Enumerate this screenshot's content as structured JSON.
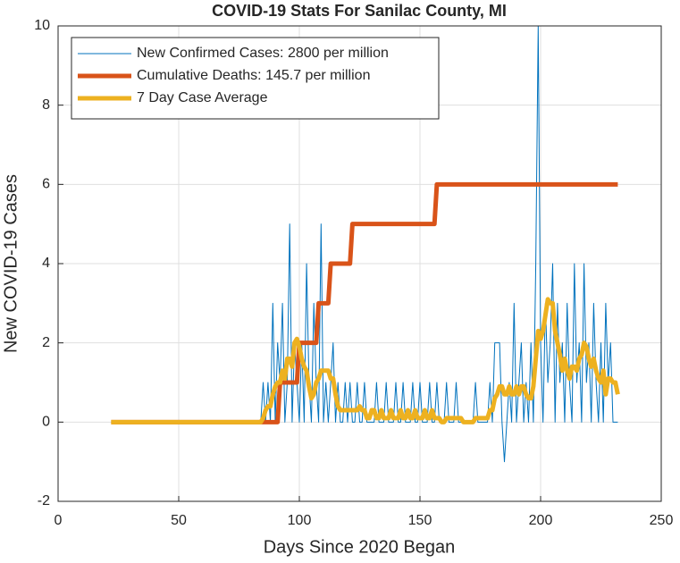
{
  "chart_data": {
    "type": "line",
    "title": "COVID-19 Stats For Sanilac County, MI",
    "x_label": "Days Since 2020 Began",
    "y_label": "New COVID-19 Cases",
    "xlim": [
      0,
      250
    ],
    "xticks": [
      0,
      50,
      100,
      150,
      200,
      250
    ],
    "ylim": [
      -2,
      10
    ],
    "yticks": [
      -2,
      0,
      2,
      4,
      6,
      8,
      10
    ],
    "grid": true,
    "legend": "upper left",
    "x": [
      22,
      23,
      24,
      25,
      26,
      27,
      28,
      29,
      30,
      31,
      32,
      33,
      34,
      35,
      36,
      37,
      38,
      39,
      40,
      41,
      42,
      43,
      44,
      45,
      46,
      47,
      48,
      49,
      50,
      51,
      52,
      53,
      54,
      55,
      56,
      57,
      58,
      59,
      60,
      61,
      62,
      63,
      64,
      65,
      66,
      67,
      68,
      69,
      70,
      71,
      72,
      73,
      74,
      75,
      76,
      77,
      78,
      79,
      80,
      81,
      82,
      83,
      84,
      85,
      86,
      87,
      88,
      89,
      90,
      91,
      92,
      93,
      94,
      95,
      96,
      97,
      98,
      99,
      100,
      101,
      102,
      103,
      104,
      105,
      106,
      107,
      108,
      109,
      110,
      111,
      112,
      113,
      114,
      115,
      116,
      117,
      118,
      119,
      120,
      121,
      122,
      123,
      124,
      125,
      126,
      127,
      128,
      129,
      130,
      131,
      132,
      133,
      134,
      135,
      136,
      137,
      138,
      139,
      140,
      141,
      142,
      143,
      144,
      145,
      146,
      147,
      148,
      149,
      150,
      151,
      152,
      153,
      154,
      155,
      156,
      157,
      158,
      159,
      160,
      161,
      162,
      163,
      164,
      165,
      166,
      167,
      168,
      169,
      170,
      171,
      172,
      173,
      174,
      175,
      176,
      177,
      178,
      179,
      180,
      181,
      182,
      183,
      184,
      185,
      186,
      187,
      188,
      189,
      190,
      191,
      192,
      193,
      194,
      195,
      196,
      197,
      198,
      199,
      200,
      201,
      202,
      203,
      204,
      205,
      206,
      207,
      208,
      209,
      210,
      211,
      212,
      213,
      214,
      215,
      216,
      217,
      218,
      219,
      220,
      221,
      222,
      223,
      224,
      225,
      226,
      227,
      228,
      229,
      230,
      231,
      232
    ],
    "series": [
      {
        "name": "New Confirmed Cases: 2800 per million",
        "color": "#0072bd",
        "width": 1,
        "values": [
          0,
          0,
          0,
          0,
          0,
          0,
          0,
          0,
          0,
          0,
          0,
          0,
          0,
          0,
          0,
          0,
          0,
          0,
          0,
          0,
          0,
          0,
          0,
          0,
          0,
          0,
          0,
          0,
          0,
          0,
          0,
          0,
          0,
          0,
          0,
          0,
          0,
          0,
          0,
          0,
          0,
          0,
          0,
          0,
          0,
          0,
          0,
          0,
          0,
          0,
          0,
          0,
          0,
          0,
          0,
          0,
          0,
          0,
          0,
          0,
          0,
          0,
          0,
          1,
          0,
          1,
          0,
          3,
          0,
          2,
          1,
          3,
          0,
          1,
          5,
          0,
          2,
          1,
          0,
          2,
          0,
          4,
          1,
          0,
          3,
          1,
          0,
          5,
          0,
          1,
          0,
          1,
          2,
          0,
          1,
          0,
          0,
          1,
          0,
          1,
          0,
          0,
          1,
          0,
          0,
          1,
          0,
          0,
          0,
          0,
          1,
          0,
          0,
          0,
          1,
          0,
          0,
          0,
          1,
          0,
          0,
          1,
          0,
          0,
          0,
          1,
          0,
          0,
          1,
          0,
          0,
          0,
          1,
          0,
          0,
          1,
          0,
          0,
          0,
          1,
          0,
          0,
          0,
          1,
          0,
          0,
          0,
          0,
          0,
          0,
          0,
          1,
          0,
          0,
          0,
          0,
          0,
          1,
          0,
          2,
          2,
          2,
          0,
          -1,
          0,
          1,
          0,
          3,
          0,
          1,
          2,
          0,
          1,
          0,
          2,
          0,
          4,
          10,
          2,
          0,
          3,
          1,
          2,
          4,
          0,
          3,
          1,
          2,
          0,
          3,
          1,
          0,
          4,
          1,
          2,
          0,
          4,
          1,
          2,
          0,
          3,
          1,
          0,
          2,
          0,
          3,
          1,
          2,
          0,
          0,
          0
        ]
      },
      {
        "name": "Cumulative Deaths: 145.7 per million",
        "color": "#d95319",
        "width": 5,
        "values": [
          0,
          0,
          0,
          0,
          0,
          0,
          0,
          0,
          0,
          0,
          0,
          0,
          0,
          0,
          0,
          0,
          0,
          0,
          0,
          0,
          0,
          0,
          0,
          0,
          0,
          0,
          0,
          0,
          0,
          0,
          0,
          0,
          0,
          0,
          0,
          0,
          0,
          0,
          0,
          0,
          0,
          0,
          0,
          0,
          0,
          0,
          0,
          0,
          0,
          0,
          0,
          0,
          0,
          0,
          0,
          0,
          0,
          0,
          0,
          0,
          0,
          0,
          0,
          0,
          0,
          0,
          0,
          0,
          0,
          0,
          1,
          1,
          1,
          1,
          1,
          1,
          1,
          1,
          2,
          2,
          2,
          2,
          2,
          2,
          2,
          2,
          3,
          3,
          3,
          3,
          3,
          4,
          4,
          4,
          4,
          4,
          4,
          4,
          4,
          4,
          5,
          5,
          5,
          5,
          5,
          5,
          5,
          5,
          5,
          5,
          5,
          5,
          5,
          5,
          5,
          5,
          5,
          5,
          5,
          5,
          5,
          5,
          5,
          5,
          5,
          5,
          5,
          5,
          5,
          5,
          5,
          5,
          5,
          5,
          5,
          6,
          6,
          6,
          6,
          6,
          6,
          6,
          6,
          6,
          6,
          6,
          6,
          6,
          6,
          6,
          6,
          6,
          6,
          6,
          6,
          6,
          6,
          6,
          6,
          6,
          6,
          6,
          6,
          6,
          6,
          6,
          6,
          6,
          6,
          6,
          6,
          6,
          6,
          6,
          6,
          6,
          6,
          6,
          6,
          6,
          6,
          6,
          6,
          6,
          6,
          6,
          6,
          6,
          6,
          6,
          6,
          6,
          6,
          6,
          6,
          6,
          6,
          6,
          6,
          6,
          6,
          6,
          6,
          6,
          6,
          6,
          6,
          6,
          6,
          6,
          6
        ]
      },
      {
        "name": "7 Day Case Average",
        "color": "#edb120",
        "width": 5,
        "values": [
          0,
          0,
          0,
          0,
          0,
          0,
          0,
          0,
          0,
          0,
          0,
          0,
          0,
          0,
          0,
          0,
          0,
          0,
          0,
          0,
          0,
          0,
          0,
          0,
          0,
          0,
          0,
          0,
          0,
          0,
          0,
          0,
          0,
          0,
          0,
          0,
          0,
          0,
          0,
          0,
          0,
          0,
          0,
          0,
          0,
          0,
          0,
          0,
          0,
          0,
          0,
          0,
          0,
          0,
          0,
          0,
          0,
          0,
          0,
          0,
          0,
          0,
          0,
          0.1,
          0.3,
          0.4,
          0.4,
          0.7,
          0.9,
          1.0,
          1.0,
          1.3,
          1.1,
          1.6,
          1.6,
          1.4,
          2.0,
          2.1,
          1.9,
          1.6,
          1.4,
          1.3,
          0.9,
          0.6,
          0.7,
          1.0,
          1.1,
          1.3,
          1.3,
          1.3,
          1.3,
          1.1,
          1.1,
          0.7,
          0.4,
          0.3,
          0.3,
          0.3,
          0.3,
          0.3,
          0.3,
          0.3,
          0.3,
          0.4,
          0.3,
          0.3,
          0.1,
          0.1,
          0.3,
          0.3,
          0.1,
          0.1,
          0.3,
          0.1,
          0.1,
          0.1,
          0.3,
          0.1,
          0.1,
          0.1,
          0.3,
          0.1,
          0.1,
          0.3,
          0.1,
          0.1,
          0.3,
          0.1,
          0.1,
          0.1,
          0.3,
          0.1,
          0.1,
          0.3,
          0.1,
          0.1,
          0.1,
          0,
          0,
          0.1,
          0.1,
          0.1,
          0.1,
          0.1,
          0.1,
          0.1,
          0,
          0,
          0,
          0,
          0,
          0.1,
          0.1,
          0.1,
          0.1,
          0.1,
          0.1,
          0.3,
          0.3,
          0.6,
          0.7,
          0.9,
          0.9,
          0.7,
          0.7,
          0.9,
          0.7,
          0.7,
          0.9,
          0.7,
          0.9,
          0.9,
          0.7,
          0.6,
          0.6,
          0.9,
          1.6,
          2.3,
          2.1,
          2.3,
          2.7,
          3.1,
          3.0,
          3.0,
          2.3,
          2.0,
          1.7,
          1.3,
          1.6,
          1.3,
          1.1,
          1.4,
          1.4,
          1.3,
          1.6,
          1.7,
          2.0,
          1.9,
          1.6,
          1.4,
          1.6,
          1.3,
          1.1,
          1.0,
          1.3,
          0.7,
          1.1,
          1.1,
          1.0,
          1.0,
          0.7
        ]
      }
    ]
  }
}
